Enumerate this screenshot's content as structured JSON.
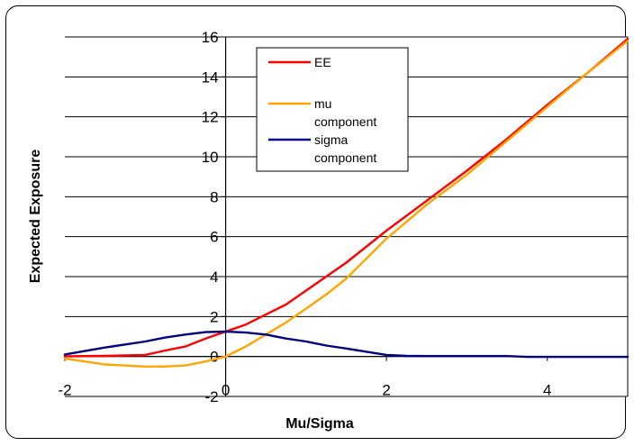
{
  "chart_data": {
    "type": "line",
    "title": "",
    "xlabel": "Mu/Sigma",
    "ylabel": "Expected Exposure",
    "xlim": [
      -2,
      5
    ],
    "ylim": [
      -2,
      16
    ],
    "x_ticks": [
      "-2",
      "0",
      "2",
      "4"
    ],
    "y_ticks": [
      "-2",
      "0",
      "2",
      "4",
      "6",
      "8",
      "10",
      "12",
      "14",
      "16"
    ],
    "grid": "horizontal",
    "legend_position": "top-center",
    "series": [
      {
        "name": "EE",
        "color": "#ff0000",
        "x": [
          -2,
          -1.5,
          -1,
          -0.75,
          -0.5,
          -0.25,
          0,
          0.25,
          0.5,
          0.75,
          1,
          1.25,
          1.5,
          2,
          2.5,
          3,
          3.5,
          4,
          4.5,
          5
        ],
        "y": [
          0.008,
          0.03,
          0.08,
          0.3,
          0.5,
          0.9,
          1.25,
          1.6,
          2.1,
          2.6,
          3.3,
          4.0,
          4.7,
          6.3,
          7.8,
          9.3,
          10.9,
          12.6,
          14.2,
          15.9
        ]
      },
      {
        "name": "mu component",
        "color": "#ffa500",
        "x": [
          -2,
          -1.5,
          -1,
          -0.75,
          -0.5,
          -0.25,
          0,
          0.25,
          0.5,
          0.75,
          1,
          1.25,
          1.5,
          2,
          2.5,
          3,
          3.5,
          4,
          4.5,
          5
        ],
        "y": [
          -0.1,
          -0.4,
          -0.5,
          -0.5,
          -0.45,
          -0.25,
          0,
          0.5,
          1.1,
          1.7,
          2.4,
          3.1,
          3.9,
          5.9,
          7.6,
          9.1,
          10.8,
          12.5,
          14.2,
          15.8
        ]
      },
      {
        "name": "sigma component",
        "color": "#000080",
        "x": [
          -2,
          -1.5,
          -1,
          -0.75,
          -0.5,
          -0.25,
          0,
          0.25,
          0.5,
          0.75,
          1,
          1.25,
          1.5,
          2,
          2.25,
          2.5,
          3,
          3.5,
          3.75,
          4,
          5
        ],
        "y": [
          0.1,
          0.45,
          0.75,
          0.95,
          1.1,
          1.22,
          1.25,
          1.2,
          1.1,
          0.9,
          0.75,
          0.55,
          0.4,
          0.08,
          0.03,
          0.02,
          0.02,
          0.02,
          -0.02,
          -0.02,
          -0.02
        ]
      }
    ],
    "legend": [
      {
        "lines": [
          "EE"
        ]
      },
      {
        "lines": [
          "mu",
          "component"
        ]
      },
      {
        "lines": [
          "sigma",
          "component"
        ]
      }
    ]
  }
}
